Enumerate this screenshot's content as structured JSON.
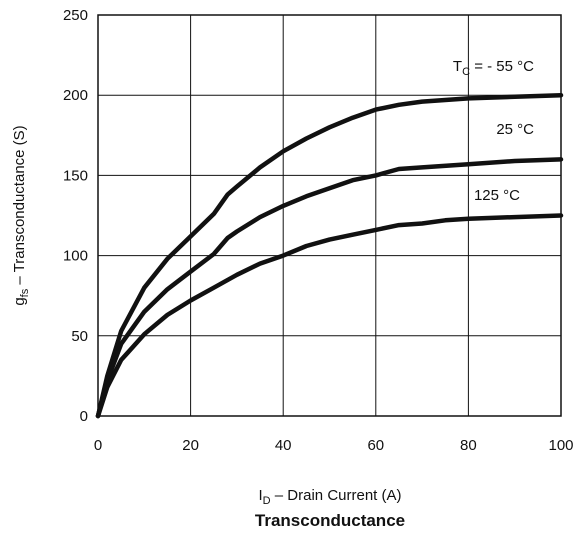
{
  "chart_data": {
    "type": "line",
    "title": "Transconductance",
    "xlabel": {
      "main": "I",
      "sub": "D",
      "rest": " –  Drain Current (A)"
    },
    "ylabel": {
      "main": "g",
      "sub": "fs",
      "rest": " – Transconductance (S)"
    },
    "xlim": [
      0,
      100
    ],
    "ylim": [
      0,
      250
    ],
    "xticks": [
      0,
      20,
      40,
      60,
      80,
      100
    ],
    "yticks": [
      0,
      50,
      100,
      150,
      200,
      250
    ],
    "grid": true,
    "series": [
      {
        "name": "-55",
        "label": {
          "main": "T",
          "sub": "C",
          "rest": " = - 55 °C"
        },
        "x": [
          0,
          2,
          5,
          10,
          15,
          20,
          25,
          28,
          30,
          35,
          40,
          45,
          50,
          55,
          60,
          65,
          70,
          80,
          90,
          100
        ],
        "y": [
          0,
          25,
          53,
          80,
          98,
          112,
          126,
          138,
          143,
          155,
          165,
          173,
          180,
          186,
          191,
          194,
          196,
          198,
          199,
          200
        ]
      },
      {
        "name": "25",
        "label": {
          "main": "25 °C",
          "sub": "",
          "rest": ""
        },
        "x": [
          0,
          2,
          5,
          10,
          15,
          20,
          25,
          28,
          30,
          35,
          40,
          45,
          50,
          55,
          60,
          65,
          70,
          80,
          90,
          100
        ],
        "y": [
          0,
          22,
          45,
          65,
          79,
          90,
          101,
          111,
          115,
          124,
          131,
          137,
          142,
          147,
          150,
          154,
          155,
          157,
          159,
          160
        ]
      },
      {
        "name": "125",
        "label": {
          "main": "125 °C",
          "sub": "",
          "rest": ""
        },
        "x": [
          0,
          2,
          5,
          10,
          15,
          20,
          25,
          30,
          35,
          40,
          45,
          50,
          55,
          60,
          65,
          70,
          75,
          80,
          90,
          100
        ],
        "y": [
          0,
          18,
          35,
          51,
          63,
          72,
          80,
          88,
          95,
          100,
          106,
          110,
          113,
          116,
          119,
          120,
          122,
          123,
          124,
          125
        ]
      }
    ]
  }
}
